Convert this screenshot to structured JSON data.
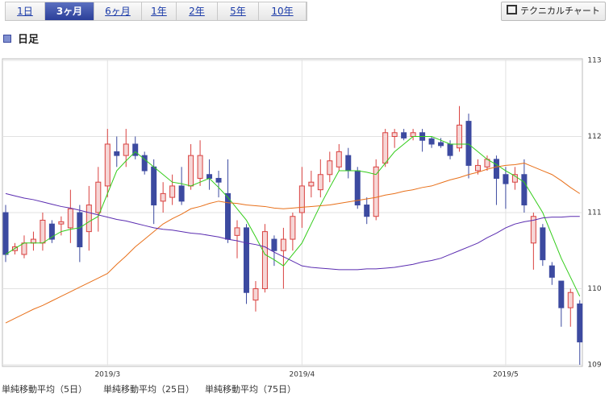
{
  "tabs": {
    "items": [
      "1日",
      "3ヶ月",
      "6ヶ月",
      "1年",
      "2年",
      "5年",
      "10年"
    ],
    "selected": 1
  },
  "button": "テクニカルチャート",
  "section_title": "日足",
  "chart_data": {
    "type": "candlestick",
    "categories": [
      null,
      null,
      null,
      null,
      null,
      null,
      null,
      null,
      null,
      null,
      null,
      "2019/3",
      null,
      null,
      null,
      null,
      null,
      null,
      null,
      null,
      null,
      null,
      null,
      null,
      null,
      null,
      null,
      null,
      null,
      null,
      null,
      null,
      "2019/4",
      null,
      null,
      null,
      null,
      null,
      null,
      null,
      null,
      null,
      null,
      null,
      null,
      null,
      null,
      null,
      null,
      null,
      null,
      null,
      null,
      null,
      "2019/5",
      null,
      null,
      null,
      null,
      null,
      null,
      null,
      null
    ],
    "open": [
      111.0,
      110.5,
      110.45,
      110.6,
      110.6,
      110.85,
      110.85,
      110.8,
      111.0,
      110.75,
      111.0,
      111.35,
      111.8,
      111.75,
      111.9,
      111.75,
      111.6,
      111.15,
      111.2,
      111.35,
      111.35,
      111.45,
      111.5,
      111.45,
      111.25,
      110.7,
      110.8,
      109.85,
      110.0,
      110.65,
      110.5,
      110.65,
      111.0,
      111.35,
      111.3,
      111.5,
      111.6,
      111.75,
      111.55,
      111.1,
      110.95,
      111.65,
      112.0,
      112.05,
      112.0,
      112.05,
      111.97,
      111.92,
      111.9,
      111.85,
      112.2,
      111.55,
      111.6,
      111.7,
      111.5,
      111.4,
      111.5,
      110.6,
      110.8,
      110.3,
      110.1,
      109.75,
      109.8
    ],
    "high": [
      111.1,
      110.6,
      110.7,
      110.75,
      111.0,
      110.9,
      110.95,
      111.3,
      111.1,
      111.35,
      111.6,
      112.1,
      112.0,
      112.1,
      112.0,
      111.8,
      111.7,
      111.4,
      111.5,
      111.6,
      111.9,
      111.95,
      111.7,
      111.55,
      111.7,
      110.9,
      110.85,
      110.1,
      110.85,
      110.7,
      110.8,
      111.0,
      111.6,
      111.55,
      111.7,
      111.8,
      111.9,
      111.85,
      111.6,
      111.2,
      111.7,
      112.1,
      112.1,
      112.1,
      112.1,
      112.1,
      112.0,
      111.98,
      111.95,
      112.4,
      112.3,
      111.7,
      111.75,
      111.75,
      111.6,
      111.6,
      111.7,
      111.0,
      110.85,
      110.35,
      110.1,
      110.0,
      109.85
    ],
    "low": [
      110.35,
      110.45,
      110.4,
      110.5,
      110.5,
      110.6,
      110.7,
      110.6,
      110.35,
      110.5,
      110.75,
      111.2,
      111.6,
      111.6,
      111.7,
      111.5,
      110.85,
      111.0,
      111.1,
      111.1,
      111.3,
      111.35,
      111.3,
      111.2,
      110.6,
      110.4,
      109.8,
      109.7,
      109.95,
      110.3,
      110.0,
      110.5,
      110.8,
      111.2,
      111.2,
      111.4,
      111.55,
      111.45,
      111.05,
      110.85,
      110.9,
      111.6,
      111.85,
      111.95,
      111.95,
      111.8,
      111.85,
      111.85,
      111.7,
      111.8,
      111.45,
      111.5,
      111.55,
      111.1,
      111.05,
      111.3,
      111.0,
      110.25,
      110.3,
      110.05,
      109.5,
      109.5,
      109.0
    ],
    "close": [
      110.45,
      110.55,
      110.6,
      110.65,
      110.9,
      110.65,
      110.88,
      111.05,
      110.55,
      111.1,
      111.4,
      111.9,
      111.75,
      111.9,
      111.75,
      111.55,
      111.1,
      111.25,
      111.35,
      111.15,
      111.75,
      111.75,
      111.45,
      111.4,
      110.65,
      110.8,
      109.95,
      110.0,
      110.75,
      110.5,
      110.65,
      110.95,
      111.35,
      111.4,
      111.5,
      111.68,
      111.8,
      111.55,
      111.1,
      110.95,
      111.6,
      112.05,
      112.05,
      111.98,
      112.05,
      111.95,
      111.9,
      111.88,
      111.75,
      112.15,
      111.62,
      111.62,
      111.7,
      111.45,
      111.38,
      111.5,
      111.1,
      110.95,
      110.38,
      110.15,
      109.75,
      109.95,
      109.3
    ],
    "up_color": "#d9413f",
    "down_color": "#3c4aa0",
    "series": [
      {
        "name": "単純移動平均（5日）",
        "color": "#33cc1a",
        "values": [
          110.45,
          110.53,
          110.6,
          110.6,
          110.6,
          110.68,
          110.75,
          110.78,
          110.8,
          110.88,
          110.95,
          111.25,
          111.55,
          111.68,
          111.8,
          111.7,
          111.6,
          111.5,
          111.4,
          111.38,
          111.35,
          111.4,
          111.45,
          111.33,
          111.2,
          111.05,
          110.9,
          110.68,
          110.45,
          110.38,
          110.3,
          110.45,
          110.6,
          110.85,
          111.1,
          111.33,
          111.55,
          111.55,
          111.55,
          111.53,
          111.5,
          111.65,
          111.8,
          111.9,
          112.0,
          112.0,
          112.0,
          111.95,
          111.9,
          111.9,
          111.9,
          111.8,
          111.7,
          111.63,
          111.55,
          111.48,
          111.4,
          111.2,
          111.0,
          110.7,
          110.4,
          110.15,
          109.9
        ]
      },
      {
        "name": "単純移動平均（25日）",
        "color": "#e8701a",
        "values": [
          109.55,
          109.61,
          109.67,
          109.73,
          109.78,
          109.84,
          109.9,
          109.96,
          110.02,
          110.08,
          110.14,
          110.2,
          110.32,
          110.43,
          110.55,
          110.65,
          110.75,
          110.85,
          110.92,
          110.98,
          111.05,
          111.08,
          111.12,
          111.15,
          111.13,
          111.12,
          111.1,
          111.09,
          111.08,
          111.06,
          111.05,
          111.06,
          111.07,
          111.08,
          111.09,
          111.1,
          111.12,
          111.14,
          111.16,
          111.18,
          111.2,
          111.23,
          111.25,
          111.28,
          111.3,
          111.33,
          111.35,
          111.39,
          111.43,
          111.46,
          111.5,
          111.53,
          111.57,
          111.6,
          111.62,
          111.63,
          111.65,
          111.6,
          111.55,
          111.5,
          111.42,
          111.33,
          111.25
        ]
      },
      {
        "name": "単純移動平均（75日）",
        "color": "#5a2cb0",
        "values": [
          111.25,
          111.22,
          111.19,
          111.17,
          111.14,
          111.11,
          111.08,
          111.06,
          111.03,
          111.0,
          110.97,
          110.94,
          110.91,
          110.89,
          110.86,
          110.83,
          110.8,
          110.78,
          110.77,
          110.75,
          110.73,
          110.72,
          110.7,
          110.68,
          110.65,
          110.63,
          110.6,
          110.58,
          110.55,
          110.48,
          110.42,
          110.36,
          110.3,
          110.28,
          110.27,
          110.26,
          110.25,
          110.25,
          110.25,
          110.26,
          110.26,
          110.27,
          110.28,
          110.3,
          110.32,
          110.35,
          110.37,
          110.4,
          110.45,
          110.5,
          110.55,
          110.6,
          110.67,
          110.73,
          110.8,
          110.85,
          110.88,
          110.9,
          110.93,
          110.94,
          110.94,
          110.95,
          110.95
        ]
      }
    ],
    "ylim": [
      109,
      113
    ],
    "yticks": [
      109,
      110,
      111,
      112,
      113
    ],
    "grid": true
  }
}
